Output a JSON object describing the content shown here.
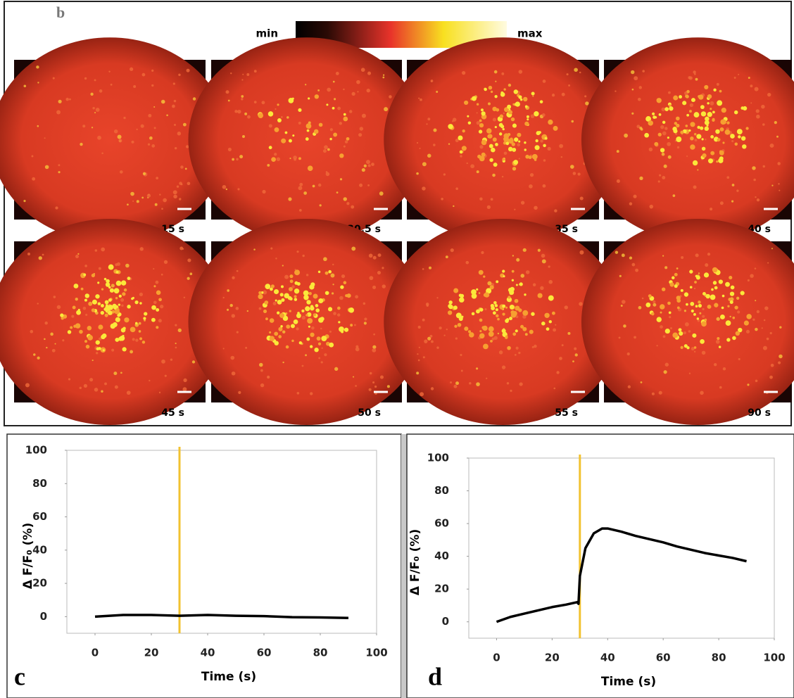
{
  "panel_b": {
    "label": "b",
    "colorbar": {
      "min_label": "min",
      "max_label": "max"
    },
    "frames": [
      "15 s",
      "30.5 s",
      "35 s",
      "40 s",
      "45 s",
      "50 s",
      "55 s",
      "90 s"
    ]
  },
  "chart_data": [
    {
      "type": "line",
      "panel_label": "c",
      "xlabel": "Time (s)",
      "ylabel": "Δ F/F₀ (%)",
      "xlim": [
        -10,
        100
      ],
      "xticks": [
        0,
        20,
        40,
        60,
        80,
        100
      ],
      "ylim": [
        -10,
        100
      ],
      "yticks": [
        0,
        20,
        40,
        60,
        80,
        100
      ],
      "marker_x": 30,
      "marker_color": "#f2c230",
      "series": [
        {
          "color": "#000000",
          "x": [
            0,
            10,
            20,
            30,
            40,
            50,
            60,
            70,
            80,
            90
          ],
          "values": [
            0,
            1,
            1,
            0.5,
            1,
            0.5,
            0.3,
            -0.3,
            -0.5,
            -0.8
          ]
        }
      ]
    },
    {
      "type": "line",
      "panel_label": "d",
      "xlabel": "Time (s)",
      "ylabel": "Δ F/F₀ (%)",
      "xlim": [
        -10,
        100
      ],
      "xticks": [
        0,
        20,
        40,
        60,
        80,
        100
      ],
      "ylim": [
        -10,
        100
      ],
      "yticks": [
        0,
        20,
        40,
        60,
        80,
        100
      ],
      "marker_x": 30,
      "marker_color": "#f2c230",
      "series": [
        {
          "color": "#000000",
          "x": [
            0,
            5,
            10,
            15,
            20,
            25,
            29,
            29.5,
            30,
            32,
            35,
            38,
            40,
            45,
            50,
            55,
            60,
            65,
            70,
            75,
            80,
            85,
            90
          ],
          "values": [
            0,
            3,
            5,
            7,
            9,
            10.5,
            12,
            11,
            28,
            45,
            54,
            57,
            57,
            55,
            52.5,
            50.5,
            48.5,
            46,
            44,
            42,
            40.5,
            39,
            37
          ]
        }
      ]
    }
  ]
}
